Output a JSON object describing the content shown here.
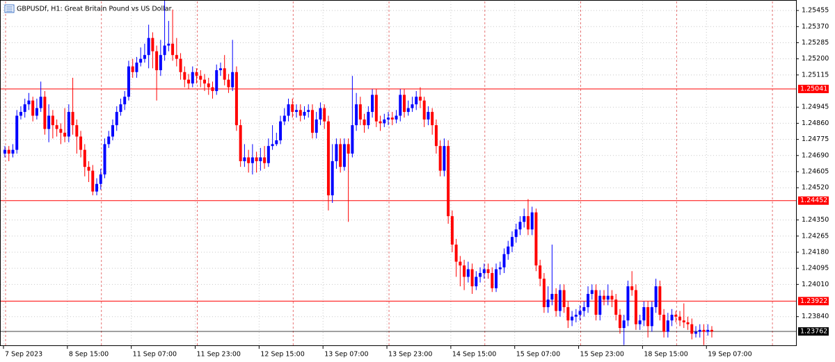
{
  "chart_data": {
    "type": "candlestick",
    "title": "GBPUSDf, H1:  Great Britain Pound vs US Dollar",
    "up_color": "#0000ff",
    "down_color": "#ff0000",
    "grid": true,
    "ylim": [
      1.23685,
      1.25503
    ],
    "yticks": [
      1.25455,
      {
        "value": 1.2537,
        "label": "1.25370"
      },
      1.25285,
      {
        "value": 1.252,
        "label": "1.25200"
      },
      1.25115,
      1.24945,
      {
        "value": 1.2486,
        "label": "1.24860"
      },
      1.24775,
      {
        "value": 1.2469,
        "label": "1.24690"
      },
      1.24605,
      {
        "value": 1.2452,
        "label": "1.24520"
      },
      {
        "value": 1.2435,
        "label": "1.24350"
      },
      1.24265,
      {
        "value": 1.2418,
        "label": "1.24180"
      },
      1.24095,
      {
        "value": 1.2401,
        "label": "1.24010"
      },
      {
        "value": 1.2384,
        "label": "1.23840"
      }
    ],
    "levels": [
      {
        "value": 1.25041,
        "color": "#ff0000"
      },
      {
        "value": 1.24452,
        "color": "#ff0000"
      },
      {
        "value": 1.23922,
        "color": "#ff0000"
      }
    ],
    "last_price": 1.23762,
    "categories": [
      "7 Sep 2023",
      null,
      null,
      null,
      null,
      null,
      null,
      null,
      null,
      null,
      null,
      null,
      null,
      null,
      null,
      null,
      "8 Sep 15:00",
      null,
      null,
      null,
      null,
      null,
      null,
      null,
      null,
      null,
      null,
      null,
      null,
      null,
      null,
      null,
      "11 Sep 07:00",
      null,
      null,
      null,
      null,
      null,
      null,
      null,
      null,
      null,
      null,
      null,
      null,
      null,
      null,
      null,
      "11 Sep 23:00",
      null,
      null,
      null,
      null,
      null,
      null,
      null,
      null,
      null,
      null,
      null,
      null,
      null,
      null,
      null,
      "12 Sep 15:00",
      null,
      null,
      null,
      null,
      null,
      null,
      null,
      null,
      null,
      null,
      null,
      null,
      null,
      null,
      null,
      "13 Sep 07:00",
      null,
      null,
      null,
      null,
      null,
      null,
      null,
      null,
      null,
      null,
      null,
      null,
      null,
      null,
      null,
      "13 Sep 23:00",
      null,
      null,
      null,
      null,
      null,
      null,
      null,
      null,
      null,
      null,
      null,
      null,
      null,
      null,
      null,
      "14 Sep 15:00",
      null,
      null,
      null,
      null,
      null,
      null,
      null,
      null,
      null,
      null,
      null,
      null,
      null,
      null,
      null,
      "15 Sep 07:00",
      null,
      null,
      null,
      null,
      null,
      null,
      null,
      null,
      null,
      null,
      null,
      null,
      null,
      null,
      null,
      "15 Sep 23:00",
      null,
      null,
      null,
      null,
      null,
      null,
      null,
      null,
      null,
      null,
      null,
      null,
      null,
      null,
      null,
      "18 Sep 15:00",
      null,
      null,
      null,
      null,
      null,
      null,
      null,
      null,
      null,
      null,
      null,
      null,
      null,
      null,
      null,
      "19 Sep 07:00",
      null
    ],
    "open": [
      1.247,
      1.2472,
      1.247,
      1.2472,
      1.249,
      1.2492,
      1.2496,
      1.2498,
      1.249,
      1.2494,
      1.25,
      1.2483,
      1.249,
      1.2485,
      1.2483,
      1.2481,
      1.2479,
      1.2492,
      1.2485,
      1.2479,
      1.2472,
      1.2463,
      1.2461,
      1.245,
      1.2454,
      1.2459,
      1.2475,
      1.2479,
      1.2485,
      1.2492,
      1.2496,
      1.25,
      1.2516,
      1.2513,
      1.2518,
      1.252,
      1.2522,
      1.2531,
      1.2524,
      1.2514,
      1.2522,
      1.2527,
      1.2528,
      1.2522,
      1.252,
      1.2513,
      1.2509,
      1.2507,
      1.2513,
      1.2511,
      1.2509,
      1.2507,
      1.2505,
      1.2503,
      1.2514,
      1.2515,
      1.2509,
      1.2505,
      1.2513,
      1.2485,
      1.2466,
      1.2468,
      1.2465,
      1.2468,
      1.2466,
      1.2468,
      1.2465,
      1.2474,
      1.2475,
      1.2477,
      1.2487,
      1.249,
      1.2496,
      1.2492,
      1.2493,
      1.249,
      1.2492,
      1.2493,
      1.2481,
      1.2488,
      1.2494,
      1.2487,
      1.2448,
      1.2466,
      1.2475,
      1.2463,
      1.2475,
      1.247,
      1.2485,
      1.2496,
      1.2488,
      1.2485,
      1.2492,
      1.2501,
      1.2487,
      1.2486,
      1.2488,
      1.2489,
      1.2488,
      1.249,
      1.2501,
      1.2492,
      1.2494,
      1.2496,
      1.25,
      1.2498,
      1.2488,
      1.2492,
      1.2485,
      1.2474,
      1.2461,
      1.2474,
      1.2437,
      1.2422,
      1.2413,
      1.2411,
      1.2405,
      1.2409,
      1.24,
      1.2405,
      1.2407,
      1.2409,
      1.2407,
      1.2399,
      1.2409,
      1.241,
      1.2417,
      1.2421,
      1.2426,
      1.243,
      1.2434,
      1.2437,
      1.243,
      1.2439,
      1.2411,
      1.2404,
      1.2389,
      1.2393,
      1.2396,
      1.2387,
      1.2398,
      1.2389,
      1.2382,
      1.2384,
      1.2385,
      1.2387,
      1.2389,
      1.2396,
      1.2398,
      1.2385,
      1.2395,
      1.2393,
      1.2395,
      1.2393,
      1.2385,
      1.2378,
      1.2382,
      1.24,
      1.2398,
      1.238,
      1.2382,
      1.2389,
      1.2379,
      1.2389,
      1.24,
      1.2385,
      1.2376,
      1.2382,
      1.2385,
      1.2384,
      1.2382,
      1.2381,
      1.238,
      1.2375,
      1.2376,
      1.2377,
      1.2376,
      1.2377
    ],
    "high": [
      1.2474,
      1.2474,
      1.2475,
      1.2493,
      1.2495,
      1.2499,
      1.2502,
      1.25,
      1.2499,
      1.2508,
      1.2503,
      1.2496,
      1.2493,
      1.2488,
      1.2486,
      1.2494,
      1.2496,
      1.251,
      1.2488,
      1.2482,
      1.2475,
      1.2466,
      1.2464,
      1.2457,
      1.2462,
      1.2478,
      1.2482,
      1.2488,
      1.2495,
      1.2499,
      1.2503,
      1.2519,
      1.252,
      1.2521,
      1.2526,
      1.2528,
      1.2538,
      1.2534,
      1.2527,
      1.253,
      1.2551,
      1.254,
      1.2546,
      1.2531,
      1.2523,
      1.2516,
      1.2512,
      1.2516,
      1.2515,
      1.2514,
      1.2512,
      1.251,
      1.2508,
      1.2517,
      1.2518,
      1.2522,
      1.2512,
      1.253,
      1.2516,
      1.2488,
      1.2475,
      1.2472,
      1.2475,
      1.2471,
      1.2473,
      1.2474,
      1.2478,
      1.2485,
      1.2481,
      1.249,
      1.2494,
      1.2499,
      1.2499,
      1.2496,
      1.2496,
      1.2495,
      1.2496,
      1.2496,
      1.2492,
      1.2497,
      1.2496,
      1.249,
      1.2475,
      1.2478,
      1.2478,
      1.2478,
      1.2478,
      1.2511,
      1.2502,
      1.25,
      1.2491,
      1.2495,
      1.2504,
      1.2504,
      1.249,
      1.2491,
      1.2492,
      1.2492,
      1.2493,
      1.2504,
      1.2504,
      1.2498,
      1.25,
      1.2503,
      1.2505,
      1.25,
      1.2495,
      1.2494,
      1.2488,
      1.2477,
      1.2478,
      1.2477,
      1.244,
      1.2425,
      1.2416,
      1.2414,
      1.2413,
      1.2412,
      1.2408,
      1.241,
      1.2412,
      1.2412,
      1.241,
      1.2412,
      1.2413,
      1.242,
      1.2424,
      1.2429,
      1.2433,
      1.2437,
      1.2441,
      1.2446,
      1.2442,
      1.2441,
      1.2414,
      1.2407,
      1.24,
      1.2422,
      1.2399,
      1.2401,
      1.2401,
      1.2392,
      1.2387,
      1.2388,
      1.239,
      1.2392,
      1.24,
      1.2401,
      1.2401,
      1.2398,
      1.2398,
      1.2401,
      1.2398,
      1.2396,
      1.2388,
      1.2385,
      1.2403,
      1.2408,
      1.2401,
      1.2385,
      1.2392,
      1.2392,
      1.2392,
      1.2404,
      1.2403,
      1.2388,
      1.2386,
      1.2388,
      1.2387,
      1.2387,
      1.2391,
      1.2384,
      1.2383,
      1.2379,
      1.238,
      1.238,
      1.238,
      1.2379
    ],
    "low": [
      1.2468,
      1.2466,
      1.2468,
      1.247,
      1.2488,
      1.2489,
      1.2493,
      1.2487,
      1.2488,
      1.2492,
      1.248,
      1.2476,
      1.2478,
      1.2479,
      1.2475,
      1.2476,
      1.2476,
      1.248,
      1.247,
      1.2468,
      1.2458,
      1.2455,
      1.2448,
      1.2448,
      1.2451,
      1.2457,
      1.2473,
      1.2477,
      1.2482,
      1.249,
      1.2493,
      1.2498,
      1.251,
      1.251,
      1.2516,
      1.2518,
      1.2515,
      1.2515,
      1.2498,
      1.2511,
      1.2519,
      1.2524,
      1.2519,
      1.2516,
      1.2509,
      1.2505,
      1.2504,
      1.2505,
      1.2507,
      1.2505,
      1.2503,
      1.2501,
      1.2499,
      1.2501,
      1.2511,
      1.2506,
      1.2502,
      1.2503,
      1.2482,
      1.2463,
      1.2463,
      1.246,
      1.2459,
      1.246,
      1.2461,
      1.2462,
      1.2463,
      1.2472,
      1.2474,
      1.2475,
      1.2485,
      1.2487,
      1.2489,
      1.2489,
      1.2487,
      1.2488,
      1.2489,
      1.2478,
      1.2478,
      1.2485,
      1.2483,
      1.244,
      1.2444,
      1.2462,
      1.246,
      1.2461,
      1.2434,
      1.2468,
      1.2482,
      1.2485,
      1.2481,
      1.2483,
      1.2489,
      1.2484,
      1.2482,
      1.2484,
      1.2485,
      1.2485,
      1.2486,
      1.2487,
      1.2489,
      1.249,
      1.2492,
      1.2493,
      1.2494,
      1.2484,
      1.2485,
      1.248,
      1.247,
      1.2458,
      1.2458,
      1.2433,
      1.2418,
      1.2405,
      1.24,
      1.2398,
      1.2402,
      1.2396,
      1.2398,
      1.2402,
      1.2404,
      1.2404,
      1.2397,
      1.2397,
      1.2406,
      1.2407,
      1.2414,
      1.2418,
      1.2423,
      1.2427,
      1.2431,
      1.2427,
      1.2427,
      1.2408,
      1.24,
      1.2386,
      1.2386,
      1.239,
      1.2384,
      1.2384,
      1.2386,
      1.2378,
      1.2379,
      1.2381,
      1.2382,
      1.2384,
      1.2386,
      1.2393,
      1.2382,
      1.2382,
      1.239,
      1.239,
      1.2389,
      1.2382,
      1.2375,
      1.2369,
      1.2379,
      1.2395,
      1.2377,
      1.2377,
      1.2379,
      1.2373,
      1.2376,
      1.2386,
      1.2382,
      1.2373,
      1.2373,
      1.2379,
      1.2381,
      1.2379,
      1.2378,
      1.2377,
      1.2372,
      1.2373,
      1.2373,
      1.2369,
      1.2374,
      1.2373
    ],
    "close": [
      1.2472,
      1.247,
      1.2472,
      1.249,
      1.2492,
      1.2496,
      1.2498,
      1.249,
      1.2494,
      1.25,
      1.2483,
      1.249,
      1.2485,
      1.2483,
      1.2481,
      1.2479,
      1.2492,
      1.2485,
      1.2479,
      1.2472,
      1.2463,
      1.2461,
      1.245,
      1.2454,
      1.2459,
      1.2475,
      1.2479,
      1.2485,
      1.2492,
      1.2496,
      1.25,
      1.2516,
      1.2513,
      1.2518,
      1.252,
      1.2522,
      1.2531,
      1.2524,
      1.2514,
      1.2522,
      1.2527,
      1.2528,
      1.2522,
      1.252,
      1.2513,
      1.2509,
      1.2507,
      1.2513,
      1.2511,
      1.2509,
      1.2507,
      1.2505,
      1.2503,
      1.2514,
      1.2515,
      1.2509,
      1.2505,
      1.2513,
      1.2485,
      1.2466,
      1.2468,
      1.2465,
      1.2468,
      1.2466,
      1.2468,
      1.2465,
      1.2474,
      1.2475,
      1.2477,
      1.2487,
      1.249,
      1.2496,
      1.2492,
      1.2493,
      1.249,
      1.2492,
      1.2493,
      1.2481,
      1.2488,
      1.2494,
      1.2487,
      1.2448,
      1.2466,
      1.2475,
      1.2463,
      1.2475,
      1.247,
      1.2485,
      1.2496,
      1.2488,
      1.2485,
      1.2492,
      1.2501,
      1.2487,
      1.2486,
      1.2488,
      1.2489,
      1.2488,
      1.249,
      1.2501,
      1.2492,
      1.2494,
      1.2496,
      1.25,
      1.2498,
      1.2488,
      1.2492,
      1.2485,
      1.2474,
      1.2461,
      1.2474,
      1.2437,
      1.2422,
      1.2413,
      1.2411,
      1.2405,
      1.2409,
      1.24,
      1.2405,
      1.2407,
      1.2409,
      1.2407,
      1.2399,
      1.2409,
      1.241,
      1.2417,
      1.2421,
      1.2426,
      1.243,
      1.2434,
      1.2437,
      1.243,
      1.2439,
      1.2411,
      1.2404,
      1.2389,
      1.2393,
      1.2396,
      1.2387,
      1.2398,
      1.2389,
      1.2382,
      1.2384,
      1.2385,
      1.2387,
      1.2389,
      1.2396,
      1.2398,
      1.2385,
      1.2395,
      1.2393,
      1.2395,
      1.2393,
      1.2385,
      1.2378,
      1.2382,
      1.24,
      1.2398,
      1.238,
      1.2382,
      1.2389,
      1.2379,
      1.2389,
      1.24,
      1.2385,
      1.2376,
      1.2382,
      1.2385,
      1.2384,
      1.2382,
      1.2381,
      1.238,
      1.2375,
      1.2376,
      1.2377,
      1.2376,
      1.2377,
      1.23762
    ]
  }
}
